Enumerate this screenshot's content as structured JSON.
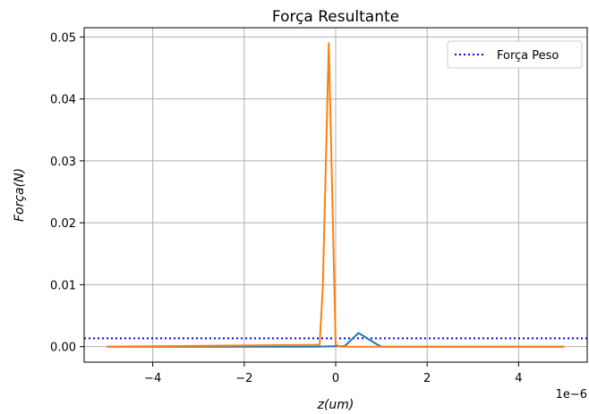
{
  "chart_data": {
    "type": "line",
    "title": "Força Resultante",
    "xlabel": "z(um)",
    "ylabel": "Força(N)",
    "x_offset_label": "1e−6",
    "xlim": [
      -5.5,
      5.5
    ],
    "ylim": [
      -0.0025,
      0.0515
    ],
    "x_ticks": [
      -4,
      -2,
      0,
      2,
      4
    ],
    "x_tick_labels": [
      "−4",
      "−2",
      "0",
      "2",
      "4"
    ],
    "y_ticks": [
      0.0,
      0.01,
      0.02,
      0.03,
      0.04,
      0.05
    ],
    "y_tick_labels": [
      "0.00",
      "0.01",
      "0.02",
      "0.03",
      "0.04",
      "0.05"
    ],
    "grid": true,
    "legend_position": "top-right",
    "legend": [
      {
        "label": "Força Peso",
        "color": "#0000ff",
        "style": "dotted"
      }
    ],
    "horizontal_lines": [
      {
        "y": 0.00135,
        "color": "#0000ff",
        "style": "dotted",
        "label": "Força Peso"
      }
    ],
    "series": [
      {
        "color": "#1f77b4",
        "x": [
          -5,
          -0.5,
          0.2,
          0.5,
          0.85,
          1.0,
          5
        ],
        "y": [
          0,
          0,
          0.0001,
          0.0022,
          0.0006,
          0,
          0
        ]
      },
      {
        "color": "#ff7f0e",
        "x": [
          -5,
          -0.35,
          -0.28,
          -0.15,
          0.0,
          0.1,
          5
        ],
        "y": [
          0,
          0.0003,
          0.01,
          0.049,
          0.0003,
          0,
          0
        ]
      }
    ]
  }
}
